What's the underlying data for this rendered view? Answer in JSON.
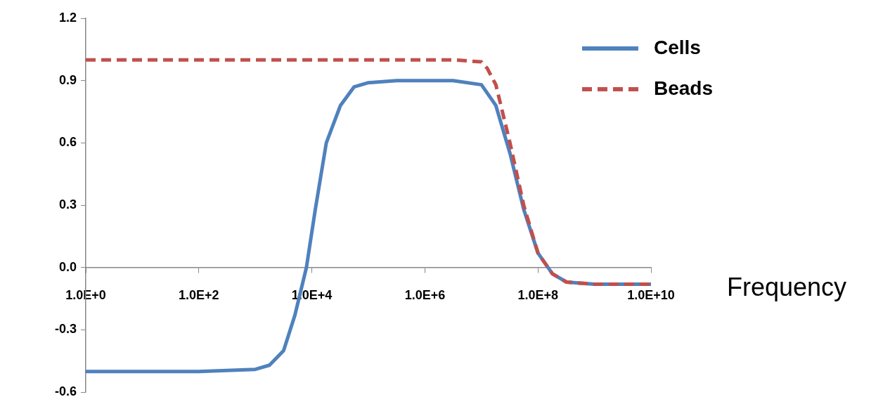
{
  "chart_data": {
    "type": "line",
    "xlabel": "Frequency",
    "log": "x",
    "grid": false,
    "legend": "top right",
    "marker": "none",
    "xlim": [
      1,
      10000000000
    ],
    "xticks": [
      {
        "value": 1,
        "label": "1.0E+0"
      },
      {
        "value": 100,
        "label": "1.0E+2"
      },
      {
        "value": 10000,
        "label": "1.0E+4"
      },
      {
        "value": 1000000,
        "label": "1.0E+6"
      },
      {
        "value": 100000000,
        "label": "1.0E+8"
      },
      {
        "value": 10000000000,
        "label": "1.0E+10"
      }
    ],
    "ylim": [
      -0.6,
      1.2
    ],
    "yticks": [
      {
        "value": -0.6,
        "label": "-0.6"
      },
      {
        "value": -0.3,
        "label": "-0.3"
      },
      {
        "value": 0,
        "label": "0.0"
      },
      {
        "value": 0.3,
        "label": "0.3"
      },
      {
        "value": 0.6,
        "label": "0.6"
      },
      {
        "value": 0.9,
        "label": "0.9"
      },
      {
        "value": 1.2,
        "label": "1.2"
      }
    ],
    "series": [
      {
        "name": "Cells",
        "color": "#4f81bd",
        "line_style": "solid",
        "x": [
          1,
          10,
          100,
          1000,
          1778,
          3162,
          5000,
          8000,
          11500,
          18000,
          32000,
          56000,
          100000,
          316000,
          1000000,
          3162000,
          10000000,
          18000000,
          32000000,
          56000000,
          100000000,
          180000000,
          320000000,
          1000000000,
          10000000000
        ],
        "values": [
          -0.5,
          -0.5,
          -0.5,
          -0.49,
          -0.47,
          -0.4,
          -0.23,
          0,
          0.28,
          0.6,
          0.78,
          0.87,
          0.89,
          0.9,
          0.9,
          0.9,
          0.88,
          0.78,
          0.55,
          0.28,
          0.07,
          -0.03,
          -0.07,
          -0.08,
          -0.08
        ]
      },
      {
        "name": "Beads",
        "color": "#c0504d",
        "line_style": "dashed",
        "x": [
          1,
          10,
          100,
          1000,
          10000,
          100000,
          1000000,
          3162000,
          10000000,
          12600000,
          18000000,
          32000000,
          56000000,
          100000000,
          180000000,
          320000000,
          1000000000,
          10000000000
        ],
        "values": [
          1,
          1,
          1,
          1,
          1,
          1,
          1,
          1,
          0.99,
          0.96,
          0.88,
          0.6,
          0.3,
          0.07,
          -0.03,
          -0.07,
          -0.08,
          -0.08
        ]
      }
    ]
  }
}
